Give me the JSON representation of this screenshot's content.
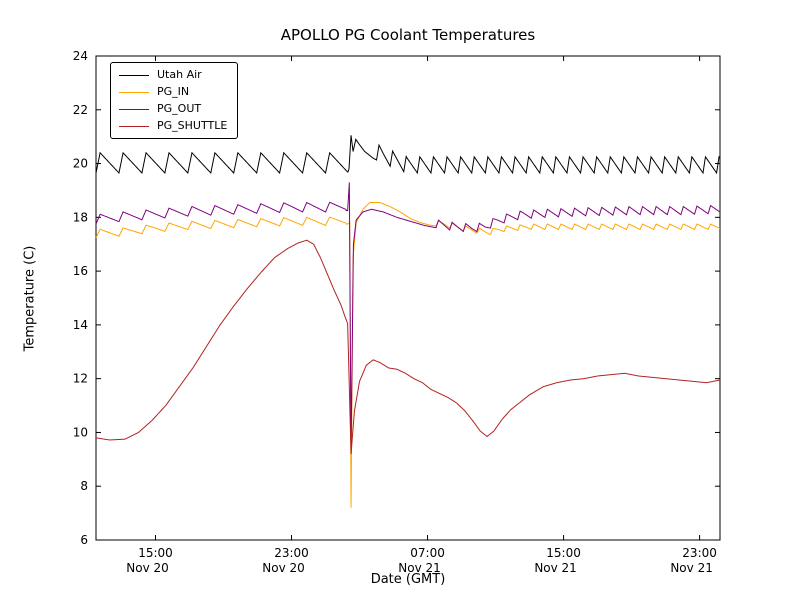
{
  "chart_data": {
    "type": "line",
    "title": "APOLLO PG Coolant Temperatures",
    "xlabel": "Date (GMT)",
    "ylabel": "Temperature (C)",
    "x_unit": "hours since Nov 20 00:00 GMT",
    "xlim": [
      11.5,
      48.2
    ],
    "ylim": [
      6,
      24
    ],
    "grid": false,
    "legend_position": "upper-left",
    "y_ticks": [
      6,
      8,
      10,
      12,
      14,
      16,
      18,
      20,
      22,
      24
    ],
    "x_ticks": [
      {
        "value": 15,
        "time": "15:00",
        "date": "Nov 20"
      },
      {
        "value": 23,
        "time": "23:00",
        "date": "Nov 20"
      },
      {
        "value": 31,
        "time": "07:00",
        "date": "Nov 21"
      },
      {
        "value": 39,
        "time": "15:00",
        "date": "Nov 21"
      },
      {
        "value": 47,
        "time": "23:00",
        "date": "Nov 21"
      }
    ],
    "series": [
      {
        "name": "Utah Air",
        "color": "#000000",
        "baseline": [
          [
            11.5,
            19.65
          ],
          [
            26.3,
            19.65
          ],
          [
            26.38,
            19.8
          ],
          [
            26.5,
            21.05
          ],
          [
            26.62,
            20.45
          ],
          [
            26.78,
            20.9
          ],
          [
            27.0,
            20.7
          ],
          [
            27.3,
            20.45
          ],
          [
            27.8,
            20.2
          ],
          [
            28.4,
            20.0
          ],
          [
            29.2,
            19.8
          ],
          [
            29.8,
            19.65
          ],
          [
            48.2,
            19.65
          ]
        ],
        "sawtooth": [
          {
            "start": 11.5,
            "end": 26.3,
            "period": 1.35,
            "amplitude": 0.75
          },
          {
            "start": 28.0,
            "end": 48.2,
            "period": 0.8,
            "amplitude": 0.6
          }
        ]
      },
      {
        "name": "PG_IN",
        "color": "#ffa500",
        "baseline": [
          [
            11.5,
            17.25
          ],
          [
            13.0,
            17.3
          ],
          [
            15.0,
            17.45
          ],
          [
            17.0,
            17.55
          ],
          [
            19.0,
            17.6
          ],
          [
            21.0,
            17.65
          ],
          [
            23.0,
            17.7
          ],
          [
            25.0,
            17.7
          ],
          [
            26.3,
            17.75
          ],
          [
            26.42,
            17.8
          ],
          [
            26.5,
            7.2
          ],
          [
            26.62,
            16.5
          ],
          [
            26.8,
            17.8
          ],
          [
            27.2,
            18.3
          ],
          [
            27.6,
            18.55
          ],
          [
            28.2,
            18.55
          ],
          [
            28.8,
            18.4
          ],
          [
            29.4,
            18.2
          ],
          [
            30.0,
            17.95
          ],
          [
            30.6,
            17.8
          ],
          [
            31.2,
            17.7
          ],
          [
            32.0,
            17.65
          ],
          [
            33.0,
            17.5
          ],
          [
            34.0,
            17.4
          ],
          [
            34.6,
            17.35
          ],
          [
            35.2,
            17.45
          ],
          [
            36.0,
            17.5
          ],
          [
            37.0,
            17.55
          ],
          [
            48.2,
            17.55
          ]
        ],
        "sawtooth": [
          {
            "start": 11.5,
            "end": 26.2,
            "period": 1.35,
            "amplitude": 0.3
          },
          {
            "start": 31.5,
            "end": 48.2,
            "period": 0.8,
            "amplitude": 0.2
          }
        ]
      },
      {
        "name": "PG_OUT",
        "color": "#800080",
        "baseline": [
          [
            11.5,
            17.75
          ],
          [
            13.0,
            17.85
          ],
          [
            15.0,
            17.95
          ],
          [
            17.0,
            18.05
          ],
          [
            19.0,
            18.1
          ],
          [
            21.0,
            18.15
          ],
          [
            23.0,
            18.2
          ],
          [
            25.0,
            18.2
          ],
          [
            26.3,
            18.25
          ],
          [
            26.4,
            19.3
          ],
          [
            26.5,
            9.3
          ],
          [
            26.64,
            17.0
          ],
          [
            26.8,
            17.9
          ],
          [
            27.2,
            18.2
          ],
          [
            27.7,
            18.3
          ],
          [
            28.4,
            18.2
          ],
          [
            29.2,
            18.0
          ],
          [
            30.0,
            17.85
          ],
          [
            30.8,
            17.7
          ],
          [
            31.6,
            17.6
          ],
          [
            32.6,
            17.5
          ],
          [
            33.6,
            17.45
          ],
          [
            34.4,
            17.5
          ],
          [
            35.0,
            17.7
          ],
          [
            35.8,
            17.85
          ],
          [
            36.6,
            17.95
          ],
          [
            38.0,
            18.0
          ],
          [
            40.0,
            18.05
          ],
          [
            43.0,
            18.1
          ],
          [
            46.0,
            18.1
          ],
          [
            48.2,
            18.15
          ]
        ],
        "sawtooth": [
          {
            "start": 11.5,
            "end": 26.2,
            "period": 1.35,
            "amplitude": 0.35
          },
          {
            "start": 31.5,
            "end": 48.2,
            "period": 0.8,
            "amplitude": 0.3
          }
        ]
      },
      {
        "name": "PG_SHUTTLE",
        "color": "#b22222",
        "baseline": [
          [
            11.5,
            9.8
          ],
          [
            12.3,
            9.72
          ],
          [
            13.2,
            9.75
          ],
          [
            14.0,
            10.0
          ],
          [
            14.8,
            10.45
          ],
          [
            15.6,
            11.0
          ],
          [
            16.4,
            11.7
          ],
          [
            17.2,
            12.4
          ],
          [
            18.0,
            13.2
          ],
          [
            18.8,
            14.0
          ],
          [
            19.6,
            14.7
          ],
          [
            20.4,
            15.35
          ],
          [
            21.2,
            15.95
          ],
          [
            22.0,
            16.5
          ],
          [
            22.8,
            16.85
          ],
          [
            23.4,
            17.05
          ],
          [
            23.9,
            17.15
          ],
          [
            24.3,
            17.0
          ],
          [
            24.7,
            16.5
          ],
          [
            25.1,
            15.9
          ],
          [
            25.5,
            15.3
          ],
          [
            25.9,
            14.75
          ],
          [
            26.15,
            14.3
          ],
          [
            26.3,
            14.05
          ],
          [
            26.5,
            9.2
          ],
          [
            26.7,
            10.8
          ],
          [
            27.0,
            11.9
          ],
          [
            27.4,
            12.5
          ],
          [
            27.8,
            12.7
          ],
          [
            28.2,
            12.6
          ],
          [
            28.7,
            12.4
          ],
          [
            29.2,
            12.35
          ],
          [
            29.7,
            12.2
          ],
          [
            30.2,
            12.0
          ],
          [
            30.7,
            11.85
          ],
          [
            31.2,
            11.6
          ],
          [
            31.7,
            11.45
          ],
          [
            32.2,
            11.3
          ],
          [
            32.7,
            11.1
          ],
          [
            33.2,
            10.8
          ],
          [
            33.7,
            10.4
          ],
          [
            34.1,
            10.05
          ],
          [
            34.5,
            9.85
          ],
          [
            34.9,
            10.05
          ],
          [
            35.4,
            10.5
          ],
          [
            35.9,
            10.85
          ],
          [
            36.4,
            11.1
          ],
          [
            37.0,
            11.4
          ],
          [
            37.8,
            11.7
          ],
          [
            38.6,
            11.85
          ],
          [
            39.4,
            11.95
          ],
          [
            40.2,
            12.0
          ],
          [
            41.0,
            12.1
          ],
          [
            41.8,
            12.15
          ],
          [
            42.6,
            12.2
          ],
          [
            43.4,
            12.1
          ],
          [
            44.2,
            12.05
          ],
          [
            45.0,
            12.0
          ],
          [
            45.8,
            11.95
          ],
          [
            46.6,
            11.9
          ],
          [
            47.4,
            11.85
          ],
          [
            48.2,
            11.95
          ]
        ],
        "sawtooth": []
      }
    ]
  }
}
